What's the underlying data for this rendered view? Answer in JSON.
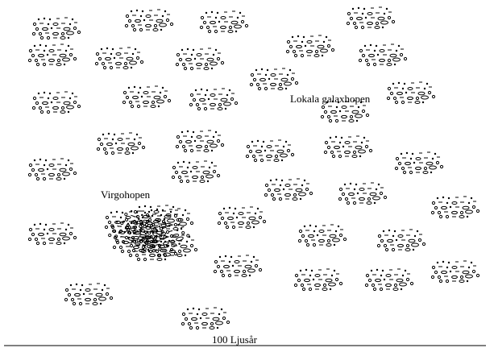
{
  "labels": {
    "local_group": "Lokala galaxhopen",
    "virgo": "Virgohopen",
    "scale": "100 Ljusår"
  }
}
